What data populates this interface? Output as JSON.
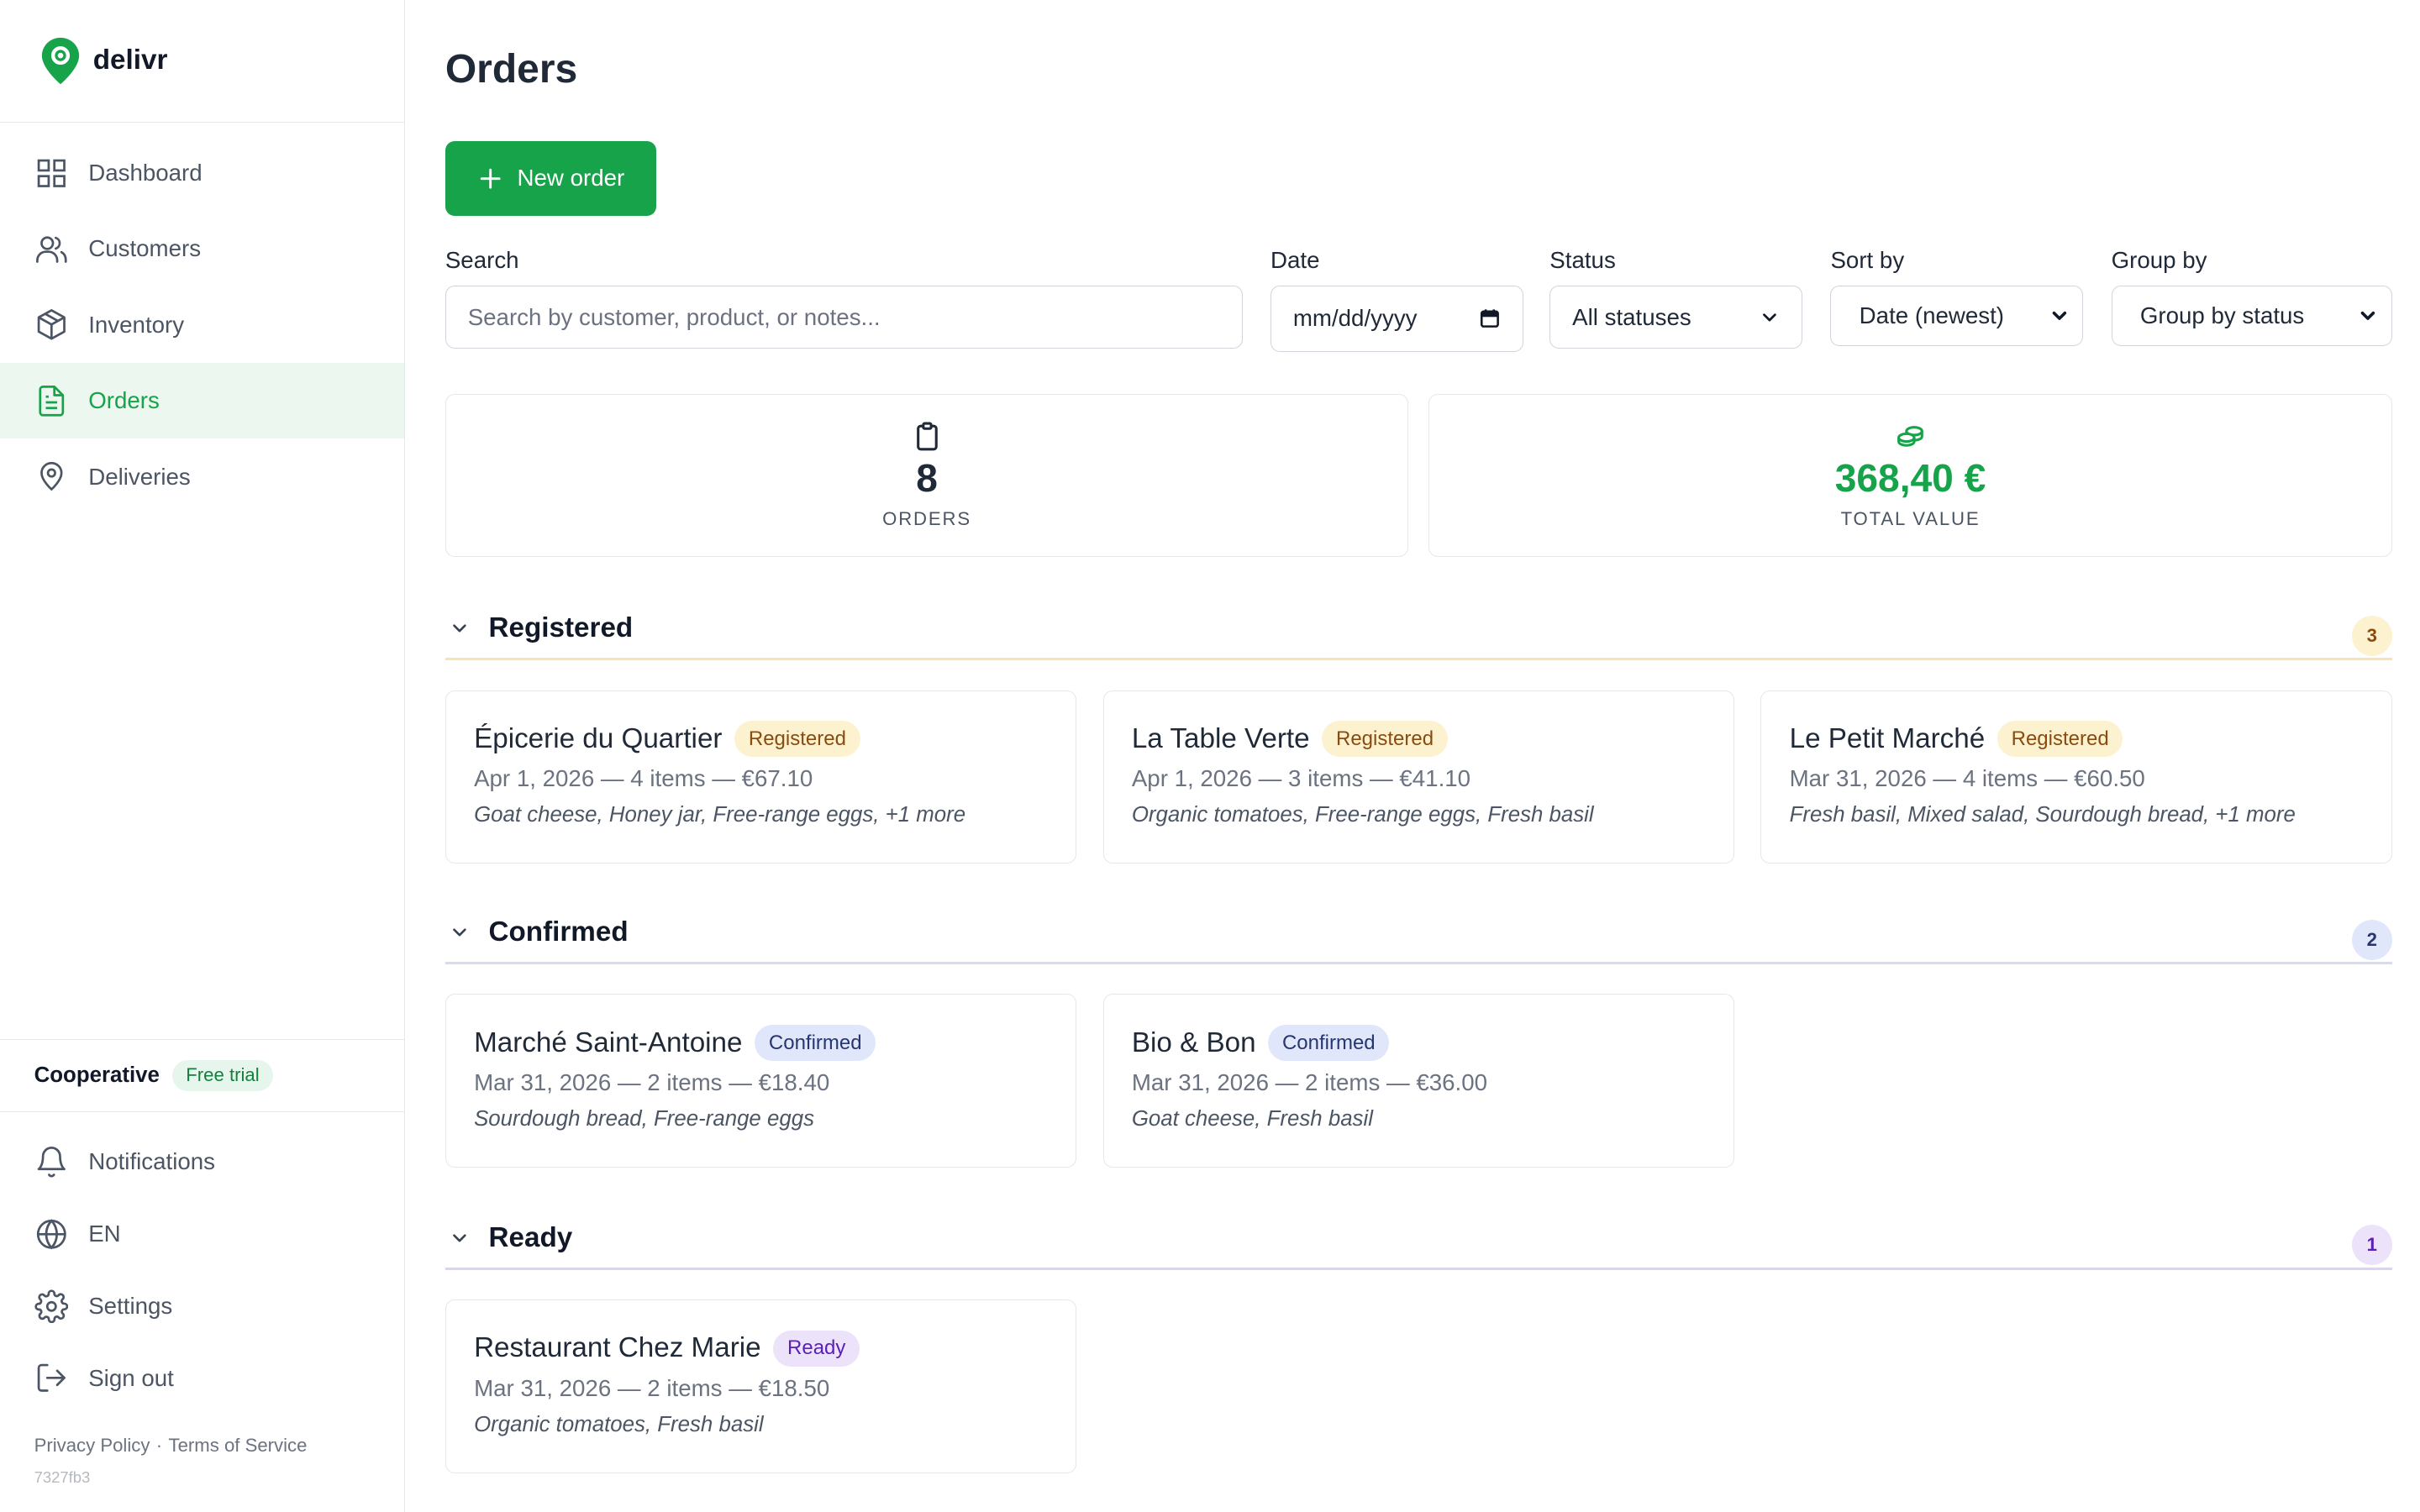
{
  "app": {
    "name": "delivr"
  },
  "sidebar": {
    "items": [
      {
        "label": "Dashboard",
        "icon": "grid-icon"
      },
      {
        "label": "Customers",
        "icon": "users-icon"
      },
      {
        "label": "Inventory",
        "icon": "box-icon"
      },
      {
        "label": "Orders",
        "icon": "document-icon",
        "active": true
      },
      {
        "label": "Deliveries",
        "icon": "map-pin-icon"
      }
    ],
    "org": {
      "name": "Cooperative",
      "plan_badge": "Free trial"
    },
    "bottom_items": [
      {
        "label": "Notifications",
        "icon": "bell-icon"
      },
      {
        "label": "EN",
        "icon": "globe-icon"
      },
      {
        "label": "Settings",
        "icon": "gear-icon"
      },
      {
        "label": "Sign out",
        "icon": "sign-out-icon"
      }
    ],
    "legal": {
      "privacy": "Privacy Policy",
      "separator": "·",
      "terms": "Terms of Service"
    },
    "build": "7327fb3"
  },
  "main": {
    "title": "Orders",
    "new_order_label": "New order",
    "filters": {
      "search_label": "Search",
      "search_placeholder": "Search by customer, product, or notes...",
      "date_label": "Date",
      "date_value": "mm/dd/yyyy",
      "status_label": "Status",
      "status_value": "All statuses",
      "sort_label": "Sort by",
      "sort_value": "Date (newest)",
      "group_label": "Group by",
      "group_value": "Group by status"
    },
    "stats": {
      "orders_count": "8",
      "orders_label": "ORDERS",
      "total_value": "368,40 €",
      "total_label": "TOTAL VALUE"
    },
    "groups": [
      {
        "title": "Registered",
        "count": "3",
        "color": "#f7e4b4",
        "orders": [
          {
            "customer": "Épicerie du Quartier",
            "status": "Registered",
            "meta": "Apr 1, 2026 — 4 items — €67.10",
            "items": "Goat cheese, Honey jar, Free-range eggs, +1 more"
          },
          {
            "customer": "La Table Verte",
            "status": "Registered",
            "meta": "Apr 1, 2026 — 3 items — €41.10",
            "items": "Organic tomatoes, Free-range eggs, Fresh basil"
          },
          {
            "customer": "Le Petit Marché",
            "status": "Registered",
            "meta": "Mar 31, 2026 — 4 items — €60.50",
            "items": "Fresh basil, Mixed salad, Sourdough bread, +1 more"
          }
        ]
      },
      {
        "title": "Confirmed",
        "count": "2",
        "color": "#d5dcf0",
        "orders": [
          {
            "customer": "Marché Saint-Antoine",
            "status": "Confirmed",
            "meta": "Mar 31, 2026 — 2 items — €18.40",
            "items": "Sourdough bread, Free-range eggs"
          },
          {
            "customer": "Bio & Bon",
            "status": "Confirmed",
            "meta": "Mar 31, 2026 — 2 items — €36.00",
            "items": "Goat cheese, Fresh basil"
          }
        ]
      },
      {
        "title": "Ready",
        "count": "1",
        "color": "#ddd1f4",
        "orders": [
          {
            "customer": "Restaurant Chez Marie",
            "status": "Ready",
            "meta": "Mar 31, 2026 — 2 items — €18.50",
            "items": "Organic tomatoes, Fresh basil"
          }
        ]
      }
    ]
  },
  "colors": {
    "accent": "#16a34a",
    "active_nav_bg": "#ecf7ef",
    "registered_badge_bg": "#fdf2cf",
    "confirmed_badge_bg": "#e0e7fb",
    "ready_badge_bg": "#ece3fb"
  }
}
